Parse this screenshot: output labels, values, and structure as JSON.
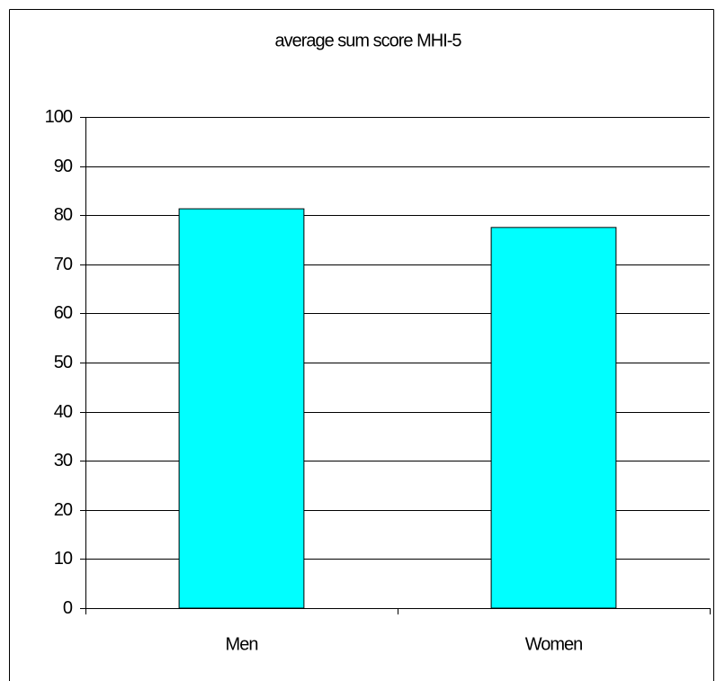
{
  "chart_data": {
    "type": "bar",
    "title": "average sum score MHI-5",
    "categories": [
      "Men",
      "Women"
    ],
    "values": [
      81.3,
      77.5
    ],
    "color": "#00ffff",
    "ylim": [
      0,
      100
    ],
    "yticks": [
      0,
      10,
      20,
      30,
      40,
      50,
      60,
      70,
      80,
      90,
      100
    ],
    "grid": true
  }
}
